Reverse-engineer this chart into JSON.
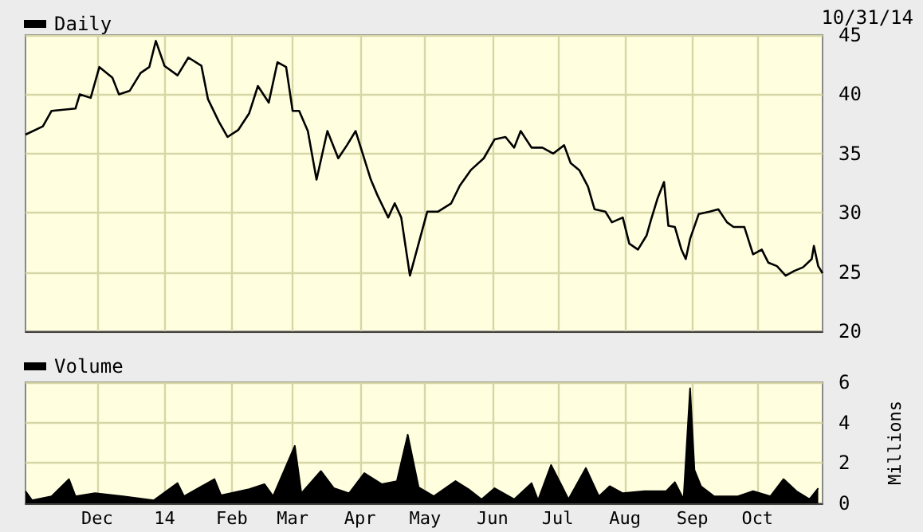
{
  "chart_data": [
    {
      "type": "line",
      "annotations": [
        "10/31/14"
      ],
      "legend": "top left",
      "grid": true,
      "marker": "none",
      "line_style": "solid",
      "tick_labels": "y",
      "xlim": [
        "2013-10-29",
        "2014-10-31"
      ],
      "xticks": [
        {
          "value": "2013-12-01",
          "label": null
        },
        {
          "value": "2014-01-01",
          "label": null
        },
        {
          "value": "2014-02-01",
          "label": null
        },
        {
          "value": "2014-03-01",
          "label": null
        },
        {
          "value": "2014-04-01",
          "label": null
        },
        {
          "value": "2014-05-01",
          "label": null
        },
        {
          "value": "2014-06-01",
          "label": null
        },
        {
          "value": "2014-07-01",
          "label": null
        },
        {
          "value": "2014-08-01",
          "label": null
        },
        {
          "value": "2014-09-01",
          "label": null
        },
        {
          "value": "2014-10-01",
          "label": null
        }
      ],
      "ylim": [
        20,
        45
      ],
      "yticks": [
        20,
        25,
        30,
        35,
        40,
        45
      ],
      "series": [
        {
          "name": "Daily",
          "color": "#000000",
          "x": [
            "2013-10-29",
            "2013-11-06",
            "2013-11-10",
            "2013-11-21",
            "2013-11-23",
            "2013-11-28",
            "2013-12-02",
            "2013-12-08",
            "2013-12-11",
            "2013-12-16",
            "2013-12-21",
            "2013-12-25",
            "2013-12-28",
            "2014-01-01",
            "2014-01-07",
            "2014-01-12",
            "2014-01-18",
            "2014-01-21",
            "2014-01-26",
            "2014-01-30",
            "2014-02-04",
            "2014-02-09",
            "2014-02-13",
            "2014-02-18",
            "2014-02-22",
            "2014-02-26",
            "2014-03-01",
            "2014-03-04",
            "2014-03-08",
            "2014-03-12",
            "2014-03-17",
            "2014-03-22",
            "2014-03-26",
            "2014-03-30",
            "2014-04-06",
            "2014-04-09",
            "2014-04-14",
            "2014-04-17",
            "2014-04-20",
            "2014-04-24",
            "2014-04-28",
            "2014-05-02",
            "2014-05-07",
            "2014-05-13",
            "2014-05-17",
            "2014-05-22",
            "2014-05-28",
            "2014-06-02",
            "2014-06-07",
            "2014-06-11",
            "2014-06-14",
            "2014-06-19",
            "2014-06-24",
            "2014-06-29",
            "2014-07-04",
            "2014-07-07",
            "2014-07-11",
            "2014-07-15",
            "2014-07-18",
            "2014-07-23",
            "2014-07-26",
            "2014-07-31",
            "2014-08-03",
            "2014-08-07",
            "2014-08-11",
            "2014-08-13",
            "2014-08-16",
            "2014-08-19",
            "2014-08-21",
            "2014-08-24",
            "2014-08-27",
            "2014-08-29",
            "2014-08-31",
            "2014-09-04",
            "2014-09-09",
            "2014-09-13",
            "2014-09-17",
            "2014-09-20",
            "2014-09-25",
            "2014-09-29",
            "2014-10-03",
            "2014-10-06",
            "2014-10-10",
            "2014-10-14",
            "2014-10-18",
            "2014-10-22",
            "2014-10-26",
            "2014-10-27",
            "2014-10-29",
            "2014-10-31"
          ],
          "values": [
            36.6,
            37.3,
            38.6,
            38.8,
            40,
            39.7,
            42.3,
            41.4,
            40,
            40.3,
            41.8,
            42.3,
            44.5,
            42.4,
            41.6,
            43.1,
            42.4,
            39.6,
            37.7,
            36.4,
            37,
            38.4,
            40.7,
            39.3,
            42.7,
            42.3,
            38.6,
            38.6,
            36.9,
            32.8,
            36.9,
            34.6,
            35.7,
            36.9,
            32.8,
            31.5,
            29.6,
            30.8,
            29.6,
            24.7,
            27.4,
            30.1,
            30.1,
            30.8,
            32.3,
            33.6,
            34.6,
            36.2,
            36.4,
            35.5,
            36.9,
            35.5,
            35.5,
            35,
            35.7,
            34.2,
            33.6,
            32.2,
            30.3,
            30.1,
            29.2,
            29.6,
            27.4,
            26.9,
            28.1,
            29.4,
            31.2,
            32.6,
            28.9,
            28.8,
            26.9,
            26.1,
            27.8,
            29.9,
            30.1,
            30.3,
            29.2,
            28.8,
            28.8,
            26.5,
            26.9,
            25.8,
            25.5,
            24.7,
            25.1,
            25.4,
            26.1,
            27.2,
            25.5,
            24.9
          ]
        }
      ]
    },
    {
      "type": "area",
      "legend": "top left",
      "grid": true,
      "ylabel": "Millions",
      "xlim": [
        "2013-10-29",
        "2014-10-31"
      ],
      "xticks": [
        {
          "value": "2013-12-01",
          "label": "Dec"
        },
        {
          "value": "2014-01-01",
          "label": "14"
        },
        {
          "value": "2014-02-01",
          "label": "Feb"
        },
        {
          "value": "2014-03-01",
          "label": "Mar"
        },
        {
          "value": "2014-04-01",
          "label": "Apr"
        },
        {
          "value": "2014-05-01",
          "label": "May"
        },
        {
          "value": "2014-06-01",
          "label": "Jun"
        },
        {
          "value": "2014-07-01",
          "label": "Jul"
        },
        {
          "value": "2014-08-01",
          "label": "Aug"
        },
        {
          "value": "2014-09-01",
          "label": "Sep"
        },
        {
          "value": "2014-10-01",
          "label": "Oct"
        }
      ],
      "ylim": [
        0,
        6
      ],
      "yticks": [
        0,
        2,
        4,
        6
      ],
      "series": [
        {
          "name": "Volume",
          "color": "#000000",
          "x": [
            "2013-10-29",
            "2013-11-01",
            "2013-11-10",
            "2013-11-18",
            "2013-11-21",
            "2013-11-30",
            "2013-12-13",
            "2013-12-27",
            "2014-01-07",
            "2014-01-10",
            "2014-01-24",
            "2014-01-27",
            "2014-02-09",
            "2014-02-16",
            "2014-02-20",
            "2014-03-02",
            "2014-03-05",
            "2014-03-14",
            "2014-03-20",
            "2014-03-27",
            "2014-04-03",
            "2014-04-11",
            "2014-04-18",
            "2014-04-23",
            "2014-04-28",
            "2014-05-05",
            "2014-05-15",
            "2014-05-21",
            "2014-05-27",
            "2014-06-02",
            "2014-06-11",
            "2014-06-19",
            "2014-06-22",
            "2014-06-28",
            "2014-07-03",
            "2014-07-06",
            "2014-07-14",
            "2014-07-20",
            "2014-07-25",
            "2014-07-31",
            "2014-08-10",
            "2014-08-20",
            "2014-08-24",
            "2014-08-28",
            "2014-08-31",
            "2014-09-01",
            "2014-09-02",
            "2014-09-05",
            "2014-09-11",
            "2014-09-22",
            "2014-09-29",
            "2014-10-07",
            "2014-10-13",
            "2014-10-19",
            "2014-10-25",
            "2014-10-29"
          ],
          "values": [
            0.6,
            0.15,
            0.35,
            1.2,
            0.35,
            0.5,
            0.35,
            0.15,
            1.0,
            0.35,
            1.2,
            0.4,
            0.7,
            0.95,
            0.35,
            2.85,
            0.5,
            1.6,
            0.75,
            0.5,
            1.5,
            0.95,
            1.1,
            3.4,
            0.8,
            0.35,
            1.1,
            0.7,
            0.2,
            0.75,
            0.2,
            1.0,
            0.15,
            1.9,
            0.85,
            0.2,
            1.75,
            0.35,
            0.85,
            0.5,
            0.6,
            0.6,
            1.05,
            0.2,
            5.7,
            3.7,
            1.65,
            0.85,
            0.35,
            0.35,
            0.6,
            0.35,
            1.2,
            0.6,
            0.2,
            0.75
          ]
        }
      ]
    }
  ]
}
